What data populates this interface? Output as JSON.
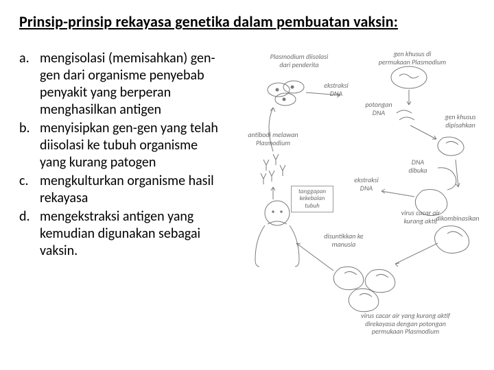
{
  "title": "Prinsip-prinsip rekayasa genetika dalam pembuatan vaksin:",
  "list": [
    {
      "marker": "a.",
      "text": "mengisolasi (memisahkan) gen-gen dari organisme penyebab penyakit yang berperan menghasilkan antigen"
    },
    {
      "marker": "b.",
      "text": "menyisipkan gen-gen yang telah diisolasi  ke tubuh organisme yang kurang patogen"
    },
    {
      "marker": "c.",
      "text": "mengkulturkan organisme hasil rekayasa"
    },
    {
      "marker": "d.",
      "text": "mengekstraksi antigen yang kemudian digunakan sebagai vaksin."
    }
  ],
  "diagram": {
    "labels": {
      "plasmodium": "Plasmodium diisolasi\ndari penderita",
      "genPermukaan": "gen khusus di\npermukaan Plasmodium",
      "ekstraksi1": "ekstraksi\nDNA",
      "potongan": "potongan\nDNA",
      "genDipisah": "gen khusus\ndipisahkan",
      "antibodi": "antibodi melawan\nPlasmodium",
      "ekstraksi2": "ekstraksi\nDNA",
      "dnaDibuka": "DNA\ndibuka",
      "virusCacar": "virus cacar air\nkurang aktif",
      "tanggapan": "tanggapan\nkekebalan\ntubuh",
      "disuntikkan": "disuntikkan ke\nmanusia",
      "dikombinasikan": "dikombinasikan",
      "virusRekayasa": "virus cacar air yang kurang aktif\ndirekayasa dengan potongan\npermukaan Plasmodium"
    },
    "colors": {
      "stroke": "#7a7a7a",
      "lightStroke": "#9a9a9a",
      "text": "#6b6b6b",
      "bg": "#ffffff"
    }
  }
}
